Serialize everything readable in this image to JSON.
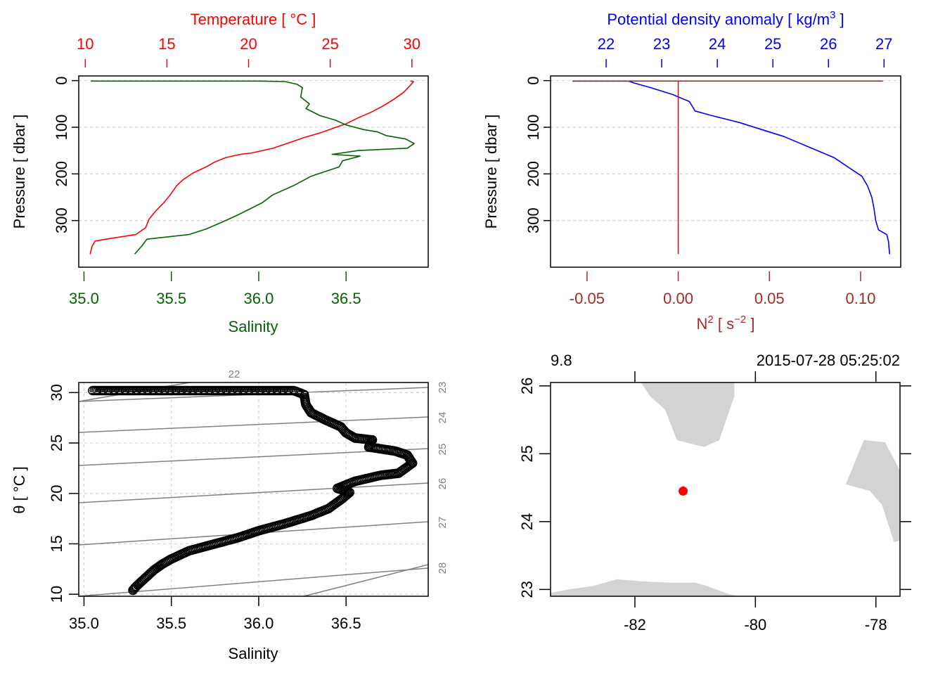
{
  "chart_data": [
    {
      "id": "profile_TS",
      "type": "line",
      "top_axis": {
        "label": "Temperature [ °C ]",
        "ticks": [
          10,
          15,
          20,
          25,
          30
        ],
        "range": [
          9.6,
          31.0
        ],
        "color": "#ff0000"
      },
      "bottom_axis": {
        "label": "Salinity",
        "ticks": [
          "35.0",
          "35.5",
          "36.0",
          "36.5"
        ],
        "range": [
          34.97,
          36.97
        ],
        "color": "#006400"
      },
      "left_axis": {
        "label": "Pressure [ dbar ]",
        "ticks": [
          0,
          100,
          200,
          300
        ],
        "range": [
          -10,
          400
        ],
        "reversed": true
      },
      "grid": "horizontal dashed",
      "series": [
        {
          "name": "Temperature",
          "color": "#ff0000",
          "points": [
            [
              29.9,
              1
            ],
            [
              30.1,
              2
            ],
            [
              29.9,
              10
            ],
            [
              29.5,
              25
            ],
            [
              28.9,
              40
            ],
            [
              28.2,
              55
            ],
            [
              27.5,
              68
            ],
            [
              26.7,
              80
            ],
            [
              26.0,
              92
            ],
            [
              25.2,
              102
            ],
            [
              24.4,
              112
            ],
            [
              23.4,
              122
            ],
            [
              22.5,
              133
            ],
            [
              21.5,
              145
            ],
            [
              20.2,
              155
            ],
            [
              19.5,
              158
            ],
            [
              18.6,
              165
            ],
            [
              17.9,
              175
            ],
            [
              17.4,
              185
            ],
            [
              16.6,
              198
            ],
            [
              16.0,
              212
            ],
            [
              15.6,
              225
            ],
            [
              15.2,
              245
            ],
            [
              14.8,
              262
            ],
            [
              14.3,
              280
            ],
            [
              13.9,
              297
            ],
            [
              13.7,
              315
            ],
            [
              13.1,
              330
            ],
            [
              11.6,
              338
            ],
            [
              10.6,
              344
            ],
            [
              10.4,
              356
            ],
            [
              10.3,
              372
            ]
          ]
        },
        {
          "name": "Salinity",
          "color": "#006400",
          "points": [
            [
              35.04,
              1
            ],
            [
              35.5,
              1
            ],
            [
              36.0,
              1
            ],
            [
              36.15,
              2
            ],
            [
              36.22,
              8
            ],
            [
              36.25,
              15
            ],
            [
              36.24,
              35
            ],
            [
              36.29,
              50
            ],
            [
              36.27,
              60
            ],
            [
              36.35,
              75
            ],
            [
              36.44,
              85
            ],
            [
              36.5,
              95
            ],
            [
              36.6,
              105
            ],
            [
              36.68,
              110
            ],
            [
              36.73,
              118
            ],
            [
              36.84,
              125
            ],
            [
              36.89,
              135
            ],
            [
              36.85,
              145
            ],
            [
              36.57,
              150
            ],
            [
              36.42,
              158
            ],
            [
              36.58,
              162
            ],
            [
              36.48,
              172
            ],
            [
              36.46,
              185
            ],
            [
              36.3,
              205
            ],
            [
              36.2,
              225
            ],
            [
              36.08,
              245
            ],
            [
              36.02,
              262
            ],
            [
              35.95,
              275
            ],
            [
              35.87,
              290
            ],
            [
              35.78,
              305
            ],
            [
              35.7,
              318
            ],
            [
              35.6,
              330
            ],
            [
              35.36,
              340
            ],
            [
              35.33,
              355
            ],
            [
              35.29,
              372
            ]
          ]
        }
      ]
    },
    {
      "id": "profile_density_N2",
      "type": "line",
      "top_axis": {
        "label": "Potential density anomaly [ kg/m³ ]",
        "label_main": "Potential density anomaly [ kg/m",
        "label_sup": "3",
        "label_end": " ]",
        "ticks": [
          22,
          23,
          24,
          25,
          26,
          27
        ],
        "range": [
          21.0,
          27.3
        ],
        "color": "#0000ff"
      },
      "bottom_axis": {
        "label": "N² [ s⁻² ]",
        "label_main": "N",
        "label_sup1": "2",
        "label_mid": " [ s",
        "label_sup2": "−2",
        "label_end": " ]",
        "ticks": [
          "-0.05",
          "0.00",
          "0.05",
          "0.10"
        ],
        "range": [
          -0.07,
          0.122
        ],
        "color": "#a52a2a"
      },
      "left_axis": {
        "label": "Pressure [ dbar ]",
        "ticks": [
          0,
          100,
          200,
          300
        ],
        "range": [
          -10,
          400
        ],
        "reversed": true
      },
      "grid": "horizontal dashed",
      "series": [
        {
          "name": "Potential density anomaly",
          "color": "#0000ff",
          "points": [
            [
              21.4,
              1
            ],
            [
              22.4,
              1
            ],
            [
              22.5,
              5
            ],
            [
              22.8,
              15
            ],
            [
              23.2,
              30
            ],
            [
              23.5,
              45
            ],
            [
              23.6,
              65
            ],
            [
              23.9,
              75
            ],
            [
              24.4,
              90
            ],
            [
              24.8,
              105
            ],
            [
              25.2,
              120
            ],
            [
              25.5,
              135
            ],
            [
              25.8,
              150
            ],
            [
              26.1,
              165
            ],
            [
              26.35,
              185
            ],
            [
              26.6,
              205
            ],
            [
              26.7,
              225
            ],
            [
              26.78,
              250
            ],
            [
              26.82,
              275
            ],
            [
              26.85,
              300
            ],
            [
              26.9,
              320
            ],
            [
              27.05,
              330
            ],
            [
              27.08,
              345
            ],
            [
              27.1,
              372
            ]
          ]
        },
        {
          "name": "N2",
          "color": "#a52a2a",
          "points": [
            [
              -0.058,
              1
            ],
            [
              0.112,
              1
            ],
            [
              0.0,
              1
            ],
            [
              0.0,
              372
            ]
          ]
        }
      ]
    },
    {
      "id": "TS_diagram",
      "type": "scatter",
      "xlabel": "Salinity",
      "ylabel": "θ [ °C ]",
      "x_ticks": [
        "35.0",
        "35.5",
        "36.0",
        "36.5"
      ],
      "y_ticks": [
        10,
        15,
        20,
        25,
        30
      ],
      "xlim": [
        34.97,
        36.97
      ],
      "ylim": [
        9.8,
        31.0
      ],
      "grid": "dashed",
      "marker": "open circle",
      "color": "#000000",
      "isopycnals": {
        "color": "#808080",
        "labels": [
          "22",
          "23",
          "24",
          "25",
          "26",
          "27",
          "28"
        ],
        "label_side": [
          "top",
          "right",
          "right",
          "right",
          "right",
          "right",
          "right"
        ]
      },
      "points": [
        [
          35.05,
          30.2
        ],
        [
          35.25,
          30.2
        ],
        [
          35.45,
          30.2
        ],
        [
          35.65,
          30.2
        ],
        [
          35.75,
          30.2
        ],
        [
          35.9,
          30.2
        ],
        [
          36.05,
          30.2
        ],
        [
          36.2,
          30.2
        ],
        [
          36.26,
          29.8
        ],
        [
          36.27,
          28.8
        ],
        [
          36.3,
          28.0
        ],
        [
          36.38,
          27.3
        ],
        [
          36.47,
          26.6
        ],
        [
          36.5,
          26.0
        ],
        [
          36.55,
          25.5
        ],
        [
          36.65,
          25.3
        ],
        [
          36.63,
          24.6
        ],
        [
          36.78,
          24.2
        ],
        [
          36.85,
          23.8
        ],
        [
          36.88,
          23.0
        ],
        [
          36.8,
          22.0
        ],
        [
          36.7,
          21.8
        ],
        [
          36.55,
          21.2
        ],
        [
          36.45,
          20.5
        ],
        [
          36.52,
          20.1
        ],
        [
          36.48,
          19.5
        ],
        [
          36.4,
          18.5
        ],
        [
          36.3,
          17.8
        ],
        [
          36.15,
          17.0
        ],
        [
          36.0,
          16.3
        ],
        [
          35.88,
          15.6
        ],
        [
          35.75,
          15.0
        ],
        [
          35.6,
          14.3
        ],
        [
          35.5,
          13.5
        ],
        [
          35.45,
          13.0
        ],
        [
          35.4,
          12.4
        ],
        [
          35.35,
          11.6
        ],
        [
          35.3,
          10.8
        ],
        [
          35.28,
          10.4
        ]
      ]
    },
    {
      "id": "station_map",
      "type": "scatter",
      "top_left_label": "9.8",
      "top_right_label": "2015-07-28 05:25:02",
      "x_ticks": [
        "-82",
        "-80",
        "-78"
      ],
      "y_ticks": [
        "23",
        "24",
        "25",
        "26"
      ],
      "xlim": [
        -83.4,
        -77.6
      ],
      "ylim": [
        22.9,
        26.05
      ],
      "land_color": "#d3d3d3",
      "station": {
        "lon": -81.2,
        "lat": 24.45,
        "color": "#ff0000"
      },
      "land_polygons": [
        {
          "name": "florida",
          "points": [
            [
              -81.9,
              26.05
            ],
            [
              -81.75,
              25.85
            ],
            [
              -81.5,
              25.65
            ],
            [
              -81.3,
              25.2
            ],
            [
              -80.85,
              25.1
            ],
            [
              -80.6,
              25.2
            ],
            [
              -80.35,
              25.85
            ],
            [
              -80.35,
              26.05
            ]
          ]
        },
        {
          "name": "bahamas",
          "points": [
            [
              -78.2,
              25.2
            ],
            [
              -77.85,
              25.17
            ],
            [
              -77.6,
              24.75
            ],
            [
              -77.6,
              23.72
            ],
            [
              -77.7,
              23.7
            ],
            [
              -77.9,
              24.25
            ],
            [
              -78.1,
              24.45
            ],
            [
              -78.5,
              24.55
            ]
          ]
        },
        {
          "name": "cuba",
          "points": [
            [
              -83.4,
              22.9
            ],
            [
              -83.4,
              22.95
            ],
            [
              -83.1,
              23.0
            ],
            [
              -82.7,
              23.05
            ],
            [
              -82.3,
              23.15
            ],
            [
              -81.9,
              23.12
            ],
            [
              -81.4,
              23.1
            ],
            [
              -81.0,
              23.1
            ],
            [
              -80.8,
              23.05
            ],
            [
              -80.5,
              22.95
            ],
            [
              -80.3,
              22.9
            ]
          ]
        }
      ]
    }
  ]
}
